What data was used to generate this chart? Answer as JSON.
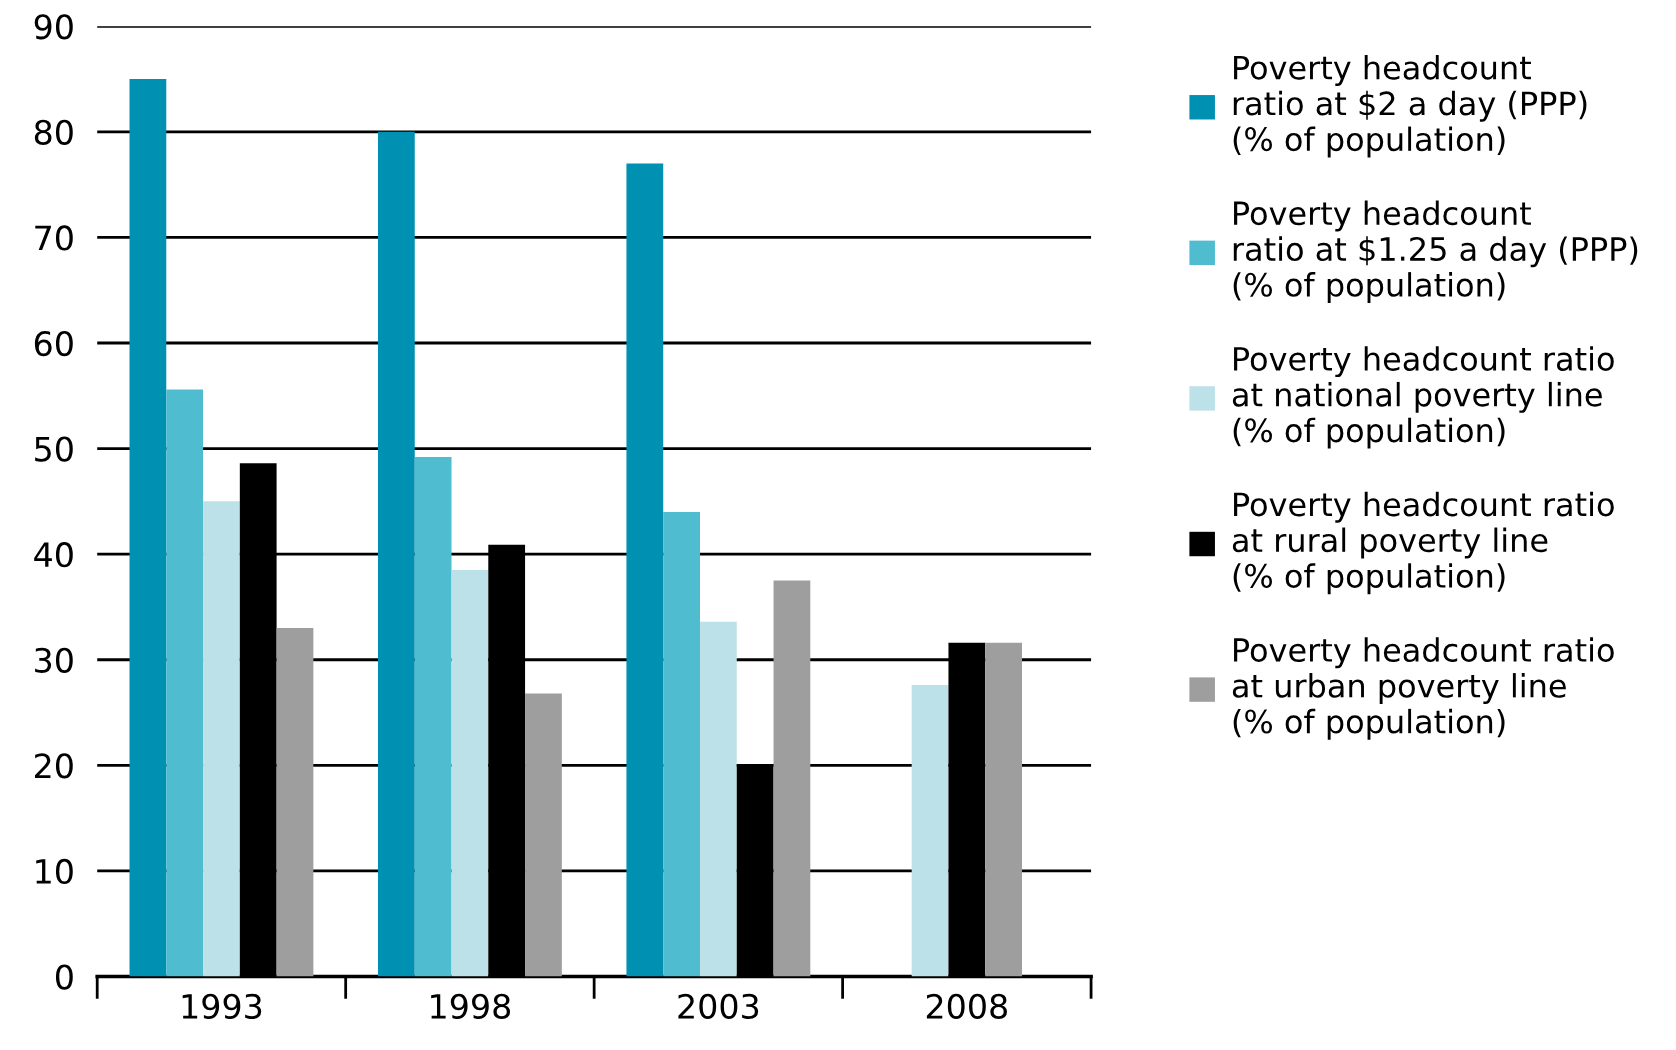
{
  "chart_data": {
    "type": "bar",
    "categories": [
      "1993",
      "1998",
      "2003",
      "2008"
    ],
    "series": [
      {
        "name": "Poverty headcount\nratio at $2 a day (PPP)\n(% of population)",
        "color": "#0091b2",
        "values": [
          85,
          80,
          77,
          null
        ]
      },
      {
        "name": "Poverty headcount\nratio at $1.25 a day (PPP)\n(% of population)",
        "color": "#4fbcd0",
        "values": [
          55.6,
          49.2,
          44,
          null
        ]
      },
      {
        "name": "Poverty headcount ratio\nat national poverty line\n(% of population)",
        "color": "#bde1e8",
        "values": [
          45,
          38.5,
          33.6,
          27.6
        ]
      },
      {
        "name": "Poverty headcount ratio\nat rural poverty line\n(% of population)",
        "color": "#000000",
        "values": [
          48.6,
          40.9,
          20.1,
          31.6
        ]
      },
      {
        "name": "Poverty headcount ratio\nat urban poverty line\n(% of population)",
        "color": "#9e9e9e",
        "values": [
          33,
          26.8,
          37.5,
          31.6
        ]
      }
    ],
    "ylim": [
      0,
      90
    ],
    "yticks": [
      0,
      10,
      20,
      30,
      40,
      50,
      60,
      70,
      80,
      90
    ],
    "grid": "y",
    "legend": "right"
  }
}
